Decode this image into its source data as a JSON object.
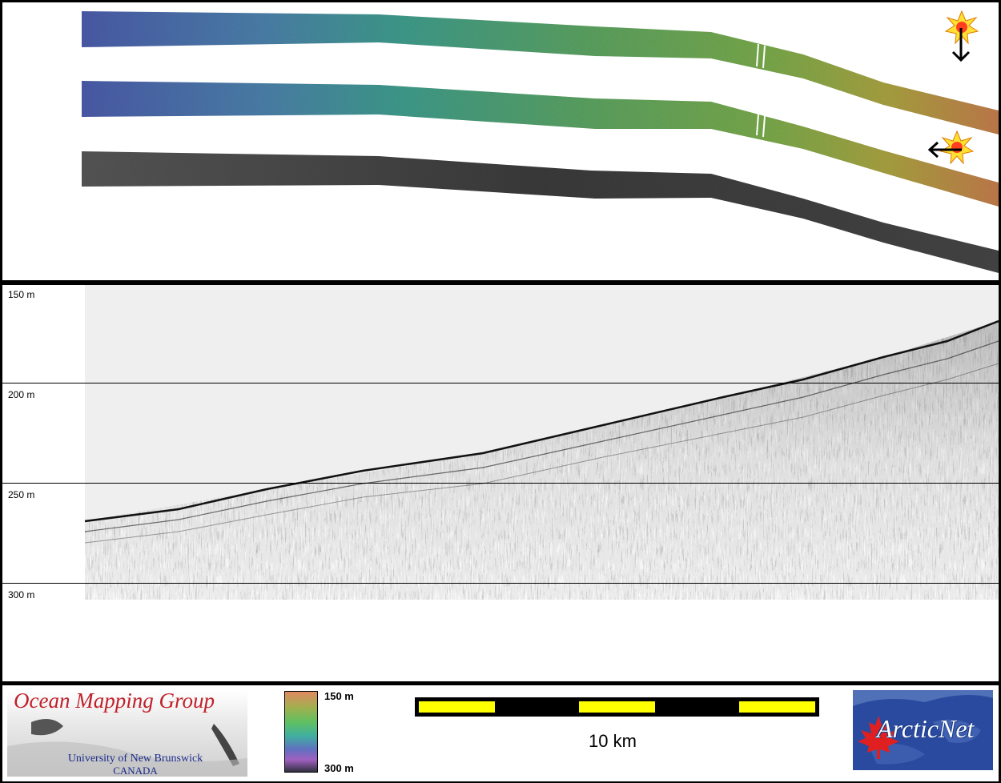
{
  "profile": {
    "depth_labels": [
      "150 m",
      "200 m",
      "250 m",
      "300 m"
    ]
  },
  "footer": {
    "ocean_mapping_title": "Ocean Mapping Group",
    "university": "University of New Brunswick",
    "country": "CANADA",
    "colorbar_top": "150 m",
    "colorbar_bottom": "300 m",
    "scale_label": "10 km",
    "arcticnet_logo": "ArcticNet"
  },
  "colors": {
    "swath_start": "#4a5aa8",
    "swath_mid": "#3e9a7a",
    "swath_green": "#6aa64a",
    "swath_end": "#c07a4a",
    "scale_yellow": "#ffff00",
    "logo_red": "#c0202a",
    "logo_blue": "#1a2a8a",
    "arcticnet_blue": "#2a4aa0"
  },
  "icons": [
    "sun-icon",
    "arrow-down-icon",
    "arrow-left-icon",
    "maple-leaf-icon"
  ]
}
